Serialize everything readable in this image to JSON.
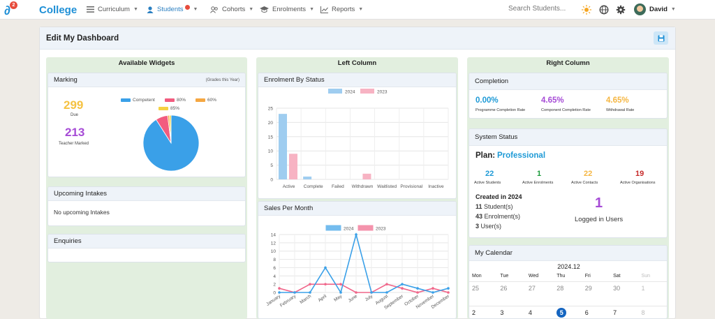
{
  "nav": {
    "logo_badge": "2",
    "brand": "College",
    "items": [
      {
        "label": "Curriculum"
      },
      {
        "label": "Students"
      },
      {
        "label": "Cohorts"
      },
      {
        "label": "Enrolments"
      },
      {
        "label": "Reports"
      }
    ],
    "search_placeholder": "Search Students...",
    "user": "David",
    "accent": "#1e8fd6"
  },
  "page": {
    "title": "Edit My Dashboard"
  },
  "columns": {
    "available": "Available Widgets",
    "left": "Left Column",
    "right": "Right Column"
  },
  "marking": {
    "title": "Marking",
    "subtitle": "(Grades this Year)",
    "due_value": "299",
    "due_label": "Due",
    "marked_value": "213",
    "marked_label": "Teacher Marked",
    "legend": [
      "Competent",
      "80%",
      "60%",
      "85%"
    ],
    "colors": {
      "due": "#f5c242",
      "marked": "#a64bd6",
      "competent": "#3aa0e8",
      "p80": "#f25c7f",
      "p60": "#f5a742",
      "p85": "#f5d142"
    }
  },
  "upcoming": {
    "title": "Upcoming Intakes",
    "empty": "No upcoming Intakes"
  },
  "enquiries": {
    "title": "Enquiries"
  },
  "enrolment_status": {
    "title": "Enrolment By Status"
  },
  "sales": {
    "title": "Sales Per Month"
  },
  "completion": {
    "title": "Completion",
    "items": [
      {
        "value": "0.00%",
        "label": "Programme Completion Rate",
        "color": "#1e9ad6"
      },
      {
        "value": "4.65%",
        "label": "Component Completion Rate",
        "color": "#a64bd6"
      },
      {
        "value": "4.65%",
        "label": "Withdrawal Rate",
        "color": "#f5b642"
      }
    ]
  },
  "system": {
    "title": "System Status",
    "plan_label": "Plan:",
    "plan_value": "Professional",
    "stats": [
      {
        "value": "22",
        "label": "Active Students",
        "color": "#1e9ad6"
      },
      {
        "value": "1",
        "label": "Active Enrolments",
        "color": "#1a9a3a"
      },
      {
        "value": "22",
        "label": "Active Contacts",
        "color": "#f5b642"
      },
      {
        "value": "19",
        "label": "Active Organisations",
        "color": "#c62828"
      }
    ],
    "created_title": "Created in 2024",
    "created": [
      {
        "num": "11",
        "label": "Student(s)"
      },
      {
        "num": "43",
        "label": "Enrolment(s)"
      },
      {
        "num": "3",
        "label": "User(s)"
      }
    ],
    "logged_value": "1",
    "logged_label": "Logged in Users",
    "logged_color": "#a64bd6"
  },
  "calendar": {
    "title": "My Calendar",
    "month": "2024.12",
    "days": [
      "Mon",
      "Tue",
      "Wed",
      "Thu",
      "Fri",
      "Sat",
      "Sun"
    ],
    "week1": [
      "25",
      "26",
      "27",
      "28",
      "29",
      "30",
      "1"
    ],
    "week2": [
      "2",
      "3",
      "4",
      "5",
      "6",
      "7",
      "8"
    ],
    "today": "5"
  },
  "chart_data": [
    {
      "type": "pie",
      "categories": [
        "Competent",
        "80%",
        "60%",
        "85%"
      ],
      "values": [
        91,
        7,
        1,
        1
      ],
      "legend": "top"
    },
    {
      "type": "bar",
      "categories": [
        "Active",
        "Complete",
        "Failed",
        "Withdrawn",
        "Waitlisted",
        "Provisional",
        "Inactive"
      ],
      "series": [
        {
          "name": "2024",
          "values": [
            23,
            1,
            0,
            0,
            0,
            0,
            0
          ],
          "color": "#9fcdf0"
        },
        {
          "name": "2023",
          "values": [
            9,
            0,
            0,
            2,
            0,
            0,
            0
          ],
          "color": "#f7b3c3"
        }
      ],
      "ylim": [
        0,
        25
      ],
      "yticks": [
        0,
        5,
        10,
        15,
        20,
        25
      ],
      "grid": true,
      "legend": "top"
    },
    {
      "type": "line",
      "categories": [
        "January",
        "February",
        "March",
        "April",
        "May",
        "June",
        "July",
        "August",
        "September",
        "October",
        "November",
        "December"
      ],
      "series": [
        {
          "name": "2024",
          "values": [
            0,
            0,
            0,
            6,
            0,
            14,
            0,
            0,
            2,
            1,
            0,
            1
          ],
          "color": "#3aa0e8"
        },
        {
          "name": "2023",
          "values": [
            1,
            0,
            2,
            2,
            2,
            0,
            0,
            2,
            1,
            0,
            1,
            0
          ],
          "color": "#f0668a"
        }
      ],
      "ylim": [
        0,
        14
      ],
      "yticks": [
        0,
        2,
        4,
        6,
        8,
        10,
        12,
        14
      ],
      "grid": true,
      "legend": "top"
    }
  ]
}
